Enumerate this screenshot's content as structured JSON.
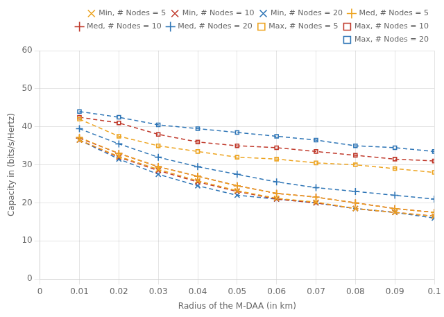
{
  "chart_data": {
    "type": "line",
    "x_label": "Radius of the M-DAA (in km)",
    "y_label": "Capacity in (bits/s/Hertz)",
    "x": [
      0.01,
      0.02,
      0.03,
      0.04,
      0.05,
      0.06,
      0.07,
      0.08,
      0.09,
      0.1
    ],
    "series": [
      {
        "name": "Min, # Nodes = 5",
        "color": "#EDA420",
        "marker": "x",
        "line_style": "dashed",
        "values": [
          36.5,
          32.2,
          28.8,
          25.8,
          23.2,
          21.2,
          20.2,
          18.5,
          17.5,
          16.5
        ]
      },
      {
        "name": "Min, # Nodes = 10",
        "color": "#C0392B",
        "marker": "x",
        "line_style": "dashed",
        "values": [
          36.5,
          32.0,
          28.5,
          25.5,
          23.0,
          21.0,
          20.0,
          18.5,
          17.5,
          16.5
        ]
      },
      {
        "name": "Min, # Nodes = 20",
        "color": "#2E75B6",
        "marker": "x",
        "line_style": "dashed",
        "values": [
          36.5,
          31.5,
          27.5,
          24.5,
          22.0,
          21.0,
          20.0,
          18.5,
          17.5,
          16.0
        ]
      },
      {
        "name": "Med, # Nodes = 5",
        "color": "#EDA420",
        "marker": "plus",
        "line_style": "dashed",
        "values": [
          37.2,
          33.0,
          29.5,
          27.0,
          24.5,
          22.5,
          21.5,
          20.0,
          18.5,
          17.5
        ]
      },
      {
        "name": "Med, # Nodes = 10",
        "color": "#C0392B",
        "marker": "plus",
        "line_style": "dashed",
        "values": [
          37.0,
          33.0,
          29.5,
          27.0,
          24.5,
          22.5,
          21.5,
          20.0,
          18.5,
          17.5
        ]
      },
      {
        "name": "Med, # Nodes = 20",
        "color": "#2E75B6",
        "marker": "plus",
        "line_style": "dashed",
        "values": [
          39.5,
          35.5,
          32.0,
          29.5,
          27.5,
          25.5,
          24.0,
          23.0,
          22.0,
          21.0
        ]
      },
      {
        "name": "Max, # Nodes = 5",
        "color": "#EDA420",
        "marker": "square",
        "line_style": "dashed",
        "values": [
          42.0,
          37.5,
          35.0,
          33.5,
          32.0,
          31.5,
          30.5,
          30.0,
          29.0,
          28.0
        ]
      },
      {
        "name": "Max, # Nodes = 10",
        "color": "#C0392B",
        "marker": "square",
        "line_style": "dashed",
        "values": [
          42.5,
          41.0,
          38.0,
          36.0,
          35.0,
          34.5,
          33.5,
          32.5,
          31.5,
          31.0
        ]
      },
      {
        "name": "Max, # Nodes = 20",
        "color": "#2E75B6",
        "marker": "square",
        "line_style": "dashed",
        "values": [
          44.0,
          42.5,
          40.5,
          39.5,
          38.5,
          37.5,
          36.5,
          35.0,
          34.5,
          33.5
        ]
      }
    ],
    "xlim": [
      0,
      0.1
    ],
    "xticks": [
      0,
      0.01,
      0.02,
      0.03,
      0.04,
      0.05,
      0.06,
      0.07,
      0.08,
      0.09,
      0.1
    ],
    "ylim": [
      0,
      60
    ],
    "yticks": [
      0,
      10,
      20,
      30,
      40,
      50,
      60
    ],
    "grid": true,
    "legend": "upper right"
  }
}
